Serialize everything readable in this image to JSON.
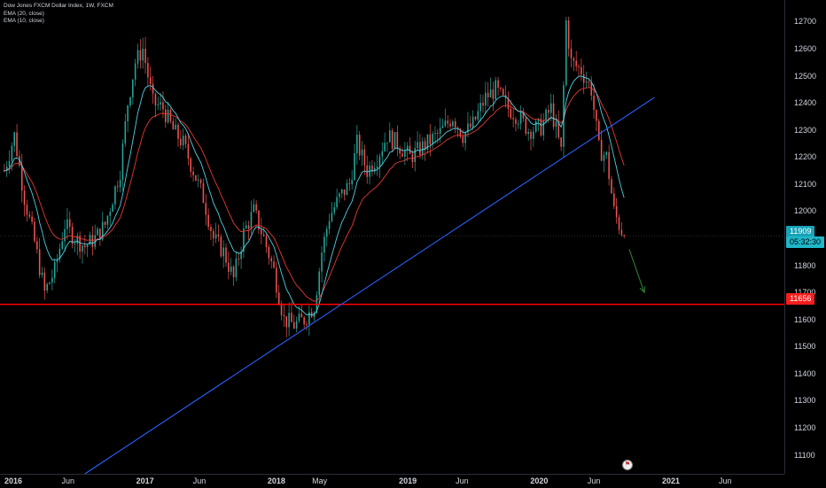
{
  "legend": {
    "title": "Dow Jones FXCM Dollar Index, 1W, FXCM",
    "ema20": "EMA (20, close)",
    "ema10": "EMA (10, close)"
  },
  "badges": {
    "last_price": "11909",
    "countdown": "05:32:30",
    "support_level": "11656"
  },
  "colors": {
    "background": "#000000",
    "up_candle": "#26a69a",
    "down_candle": "#ef5350",
    "trendline": "#2962ff",
    "support": "#ff0000",
    "ema20": "#e53935",
    "ema10": "#4dd0e1",
    "arrow": "#2e7d32"
  },
  "chart_data": {
    "type": "candlestick",
    "ylim": [
      11030,
      12780
    ],
    "y_ticks": [
      12700,
      12600,
      12500,
      12400,
      12300,
      12200,
      12100,
      12000,
      11800,
      11700,
      11600,
      11500,
      11400,
      11300,
      11200,
      11100
    ],
    "x_ticks": [
      {
        "label": "2016",
        "date": "2016-01-01",
        "major": true
      },
      {
        "label": "Jun",
        "date": "2016-06-01",
        "major": false
      },
      {
        "label": "2017",
        "date": "2017-01-01",
        "major": true
      },
      {
        "label": "Jun",
        "date": "2017-06-01",
        "major": false
      },
      {
        "label": "2018",
        "date": "2018-01-01",
        "major": true
      },
      {
        "label": "May",
        "date": "2018-05-01",
        "major": false
      },
      {
        "label": "2019",
        "date": "2019-01-01",
        "major": true
      },
      {
        "label": "Jun",
        "date": "2019-06-01",
        "major": false
      },
      {
        "label": "2020",
        "date": "2020-01-01",
        "major": true
      },
      {
        "label": "Jun",
        "date": "2020-06-01",
        "major": false
      },
      {
        "label": "2021",
        "date": "2021-01-01",
        "major": true
      },
      {
        "label": "Jun",
        "date": "2021-06-01",
        "major": false
      }
    ],
    "price_path": [
      [
        "2015-12-07",
        12150
      ],
      [
        "2016-01-04",
        12280
      ],
      [
        "2016-02-01",
        12050
      ],
      [
        "2016-03-01",
        11880
      ],
      [
        "2016-03-28",
        11700
      ],
      [
        "2016-04-25",
        11780
      ],
      [
        "2016-05-23",
        11950
      ],
      [
        "2016-06-20",
        11900
      ],
      [
        "2016-07-18",
        11870
      ],
      [
        "2016-08-15",
        11900
      ],
      [
        "2016-09-12",
        11950
      ],
      [
        "2016-10-03",
        12050
      ],
      [
        "2016-10-24",
        12150
      ],
      [
        "2016-11-14",
        12400
      ],
      [
        "2016-12-05",
        12550
      ],
      [
        "2016-12-26",
        12600
      ],
      [
        "2017-01-23",
        12400
      ],
      [
        "2017-02-20",
        12380
      ],
      [
        "2017-03-20",
        12300
      ],
      [
        "2017-04-17",
        12250
      ],
      [
        "2017-05-15",
        12150
      ],
      [
        "2017-06-12",
        12050
      ],
      [
        "2017-07-10",
        11900
      ],
      [
        "2017-08-07",
        11850
      ],
      [
        "2017-09-04",
        11750
      ],
      [
        "2017-10-02",
        11920
      ],
      [
        "2017-10-30",
        12000
      ],
      [
        "2017-11-27",
        11900
      ],
      [
        "2017-12-25",
        11780
      ],
      [
        "2018-01-22",
        11600
      ],
      [
        "2018-02-19",
        11580
      ],
      [
        "2018-03-19",
        11600
      ],
      [
        "2018-04-16",
        11650
      ],
      [
        "2018-05-07",
        11850
      ],
      [
        "2018-05-28",
        11980
      ],
      [
        "2018-06-25",
        12050
      ],
      [
        "2018-07-23",
        12100
      ],
      [
        "2018-08-13",
        12250
      ],
      [
        "2018-09-10",
        12150
      ],
      [
        "2018-10-08",
        12200
      ],
      [
        "2018-11-05",
        12280
      ],
      [
        "2018-12-03",
        12250
      ],
      [
        "2019-01-07",
        12200
      ],
      [
        "2019-02-04",
        12230
      ],
      [
        "2019-03-04",
        12260
      ],
      [
        "2019-04-01",
        12290
      ],
      [
        "2019-05-06",
        12350
      ],
      [
        "2019-06-03",
        12280
      ],
      [
        "2019-07-01",
        12320
      ],
      [
        "2019-08-05",
        12420
      ],
      [
        "2019-09-02",
        12450
      ],
      [
        "2019-10-07",
        12380
      ],
      [
        "2019-11-04",
        12350
      ],
      [
        "2019-12-02",
        12300
      ],
      [
        "2020-01-06",
        12310
      ],
      [
        "2020-02-03",
        12380
      ],
      [
        "2020-03-02",
        12220
      ],
      [
        "2020-03-16",
        12700
      ],
      [
        "2020-03-30",
        12550
      ],
      [
        "2020-04-27",
        12520
      ],
      [
        "2020-05-25",
        12450
      ],
      [
        "2020-06-15",
        12230
      ],
      [
        "2020-07-06",
        12200
      ],
      [
        "2020-07-27",
        12000
      ],
      [
        "2020-08-10",
        11950
      ],
      [
        "2020-08-24",
        11909
      ]
    ],
    "last_price": 11909,
    "support_level": 11656,
    "trendline": {
      "from": [
        "2016-07-18",
        11030
      ],
      "to": [
        "2020-11-16",
        12420
      ]
    },
    "arrow": {
      "from": [
        "2020-09-07",
        11860
      ],
      "to": [
        "2020-10-19",
        11700
      ]
    },
    "ema_lines": [
      "EMA (20, close)",
      "EMA (10, close)"
    ]
  }
}
